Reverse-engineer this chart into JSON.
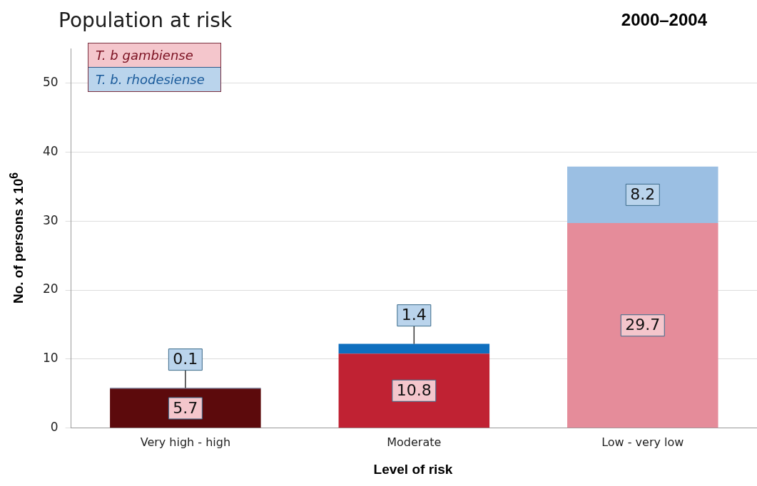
{
  "chart_data": {
    "type": "bar",
    "title": "Population at risk",
    "subtitle": "2000–2004",
    "xlabel": "Level of risk",
    "ylabel": "No. of persons x 10$^{6}$",
    "categories": [
      "Very high - high",
      "Moderate",
      "Low - very low"
    ],
    "series": [
      {
        "name": "T. b gambiense",
        "color": "#f4c6cc",
        "colors": [
          "#5c0a0c",
          "#c02233",
          "#e58c9a"
        ],
        "values": [
          5.7,
          10.8,
          29.7
        ]
      },
      {
        "name": "T. b. rhodesiense",
        "color": "#bad4ec",
        "colors": [
          "#1b2a5a",
          "#0f6fbf",
          "#9bbfe3"
        ],
        "values": [
          0.1,
          1.4,
          8.2
        ]
      }
    ],
    "stacked": true,
    "ylim": [
      0,
      55
    ],
    "yticks": [
      0,
      10,
      20,
      30,
      40,
      50
    ],
    "grid": "y",
    "legend": "top left",
    "data_labels": true
  }
}
